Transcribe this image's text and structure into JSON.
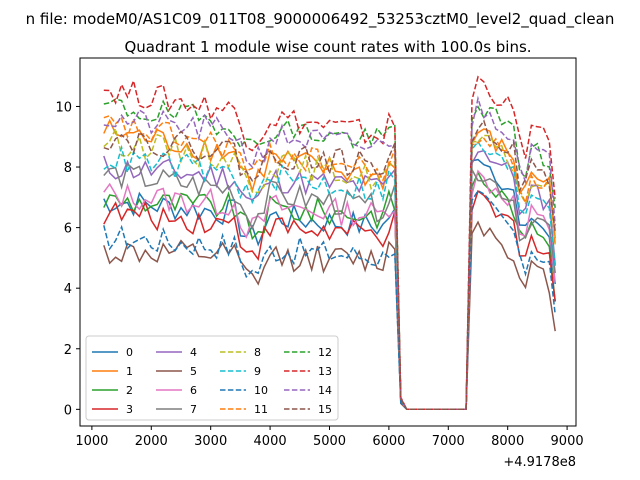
{
  "chart_data": {
    "type": "line",
    "suptitle": "n file: modeM0/AS1C09_011T08_9000006492_53253cztM0_level2_quad_clean",
    "title": "Quadrant 1 module wise count rates with 100.0s bins.",
    "xlabel": "",
    "ylabel": "",
    "x_offset_label": "+4.9178e8",
    "xlim": [
      800,
      9150
    ],
    "ylim": [
      -0.55,
      11.6
    ],
    "xticks": [
      1000,
      2000,
      3000,
      4000,
      5000,
      6000,
      7000,
      8000,
      9000
    ],
    "yticks": [
      0,
      2,
      4,
      6,
      8,
      10
    ],
    "grid": false,
    "legend_position": "lower-left",
    "x_start": 1200,
    "x_step": 100,
    "gap_start": 6200,
    "gap_end": 7300,
    "series": [
      {
        "name": "0",
        "color": "#1f77b4",
        "style": "solid",
        "base": 6.9,
        "end": 6.0,
        "post": 7.4,
        "postEnd": 5.5
      },
      {
        "name": "1",
        "color": "#ff7f0e",
        "style": "solid",
        "base": 9.2,
        "end": 7.6,
        "post": 8.1,
        "postEnd": 7.3
      },
      {
        "name": "2",
        "color": "#2ca02c",
        "style": "solid",
        "base": 6.9,
        "end": 6.4,
        "post": 6.6,
        "postEnd": 5.5
      },
      {
        "name": "3",
        "color": "#d62728",
        "style": "solid",
        "base": 6.5,
        "end": 5.7,
        "post": 5.8,
        "postEnd": 5.1
      },
      {
        "name": "4",
        "color": "#9467bd",
        "style": "solid",
        "base": 8.0,
        "end": 7.3,
        "post": 7.6,
        "postEnd": 6.6
      },
      {
        "name": "5",
        "color": "#8c564b",
        "style": "solid",
        "base": 5.2,
        "end": 4.9,
        "post": 5.1,
        "postEnd": 4.0
      },
      {
        "name": "6",
        "color": "#e377c2",
        "style": "solid",
        "base": 7.1,
        "end": 6.4,
        "post": 6.6,
        "postEnd": 5.9
      },
      {
        "name": "7",
        "color": "#7f7f7f",
        "style": "solid",
        "base": 7.8,
        "end": 6.6,
        "post": 6.8,
        "postEnd": 5.8
      },
      {
        "name": "8",
        "color": "#bcbd22",
        "style": "dashed",
        "base": 8.9,
        "end": 7.6,
        "post": 7.9,
        "postEnd": 7.0
      },
      {
        "name": "9",
        "color": "#17becf",
        "style": "dashed",
        "base": 8.3,
        "end": 7.2,
        "post": 7.7,
        "postEnd": 6.6
      },
      {
        "name": "10",
        "color": "#1f77b4",
        "style": "dashed",
        "base": 5.7,
        "end": 5.0,
        "post": 5.9,
        "postEnd": 4.6
      },
      {
        "name": "11",
        "color": "#ff7f0e",
        "style": "dashed",
        "base": 9.4,
        "end": 7.8,
        "post": 8.0,
        "postEnd": 7.2
      },
      {
        "name": "12",
        "color": "#2ca02c",
        "style": "dashed",
        "base": 10.0,
        "end": 8.8,
        "post": 9.0,
        "postEnd": 8.0
      },
      {
        "name": "13",
        "color": "#d62728",
        "style": "dashed",
        "base": 10.6,
        "end": 9.0,
        "post": 9.8,
        "postEnd": 8.6
      },
      {
        "name": "14",
        "color": "#9467bd",
        "style": "dashed",
        "base": 9.6,
        "end": 8.6,
        "post": 8.9,
        "postEnd": 8.0
      },
      {
        "name": "15",
        "color": "#8c564b",
        "style": "dashed",
        "base": 9.0,
        "end": 8.0,
        "post": 8.4,
        "postEnd": 7.4
      }
    ]
  }
}
